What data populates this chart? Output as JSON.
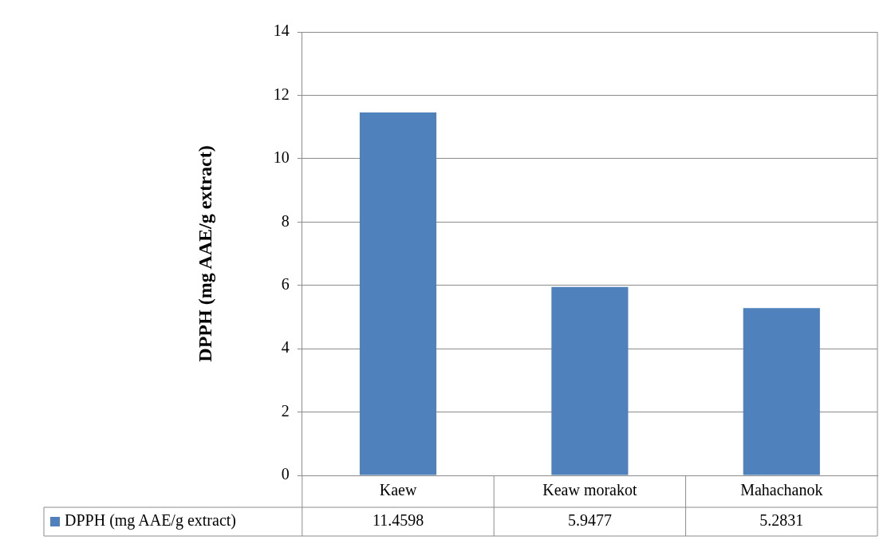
{
  "chart_data": {
    "type": "bar",
    "ylabel": "DPPH (mg AAE/g extract)",
    "categories": [
      "Kaew",
      "Keaw morakot",
      "Mahachanok"
    ],
    "series": [
      {
        "name": "DPPH (mg AAE/g extract)",
        "color": "#4f81bd",
        "values": [
          11.4598,
          5.9477,
          5.2831
        ]
      }
    ],
    "ylim": [
      0,
      14
    ],
    "yticks": [
      0,
      2,
      4,
      6,
      8,
      10,
      12,
      14
    ],
    "grid": "y",
    "legend": "bottom",
    "data_labels": true
  }
}
